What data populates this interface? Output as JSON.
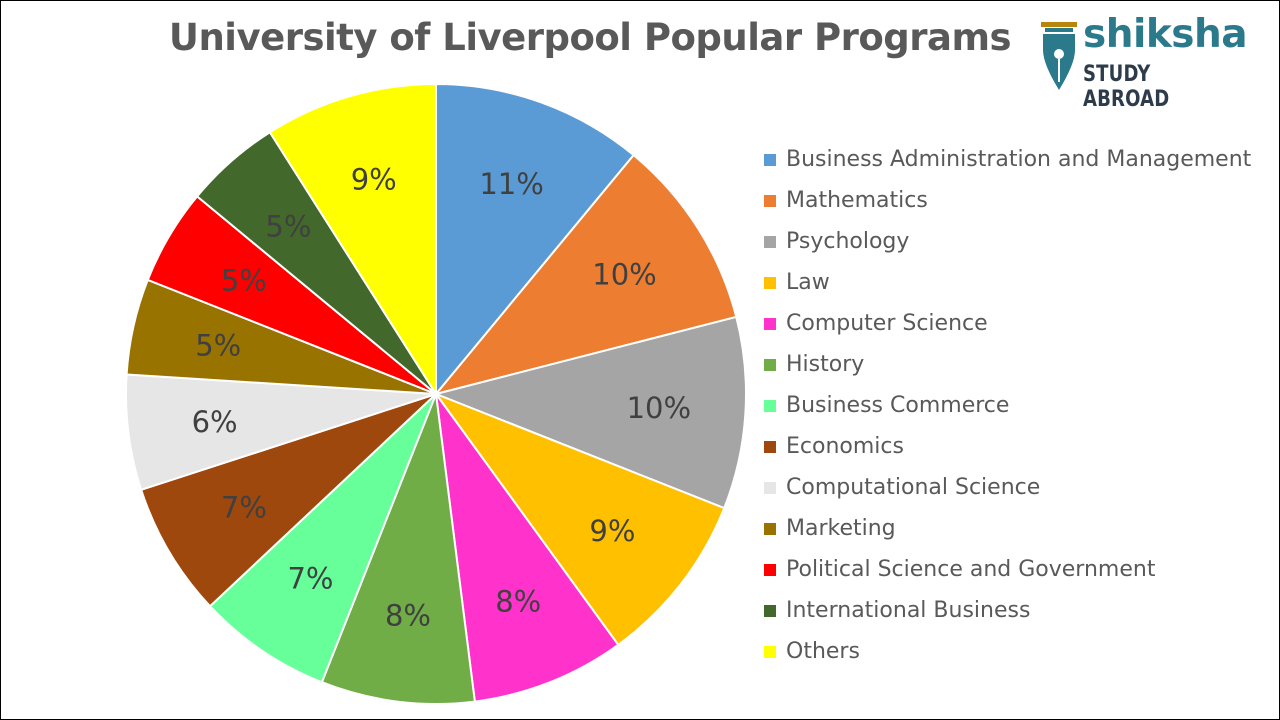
{
  "chart_data": {
    "type": "pie",
    "title": "University of Liverpool Popular Programs",
    "legend_position": "right",
    "slices": [
      {
        "name": "Business Administration and Management",
        "value": 11,
        "label": "11%",
        "color": "#5B9BD5",
        "label_color": "#404040"
      },
      {
        "name": "Mathematics",
        "value": 10,
        "label": "10%",
        "color": "#ED7D31",
        "label_color": "#404040"
      },
      {
        "name": "Psychology",
        "value": 10,
        "label": "10%",
        "color": "#A5A5A5",
        "label_color": "#404040"
      },
      {
        "name": "Law",
        "value": 9,
        "label": "9%",
        "color": "#FFC000",
        "label_color": "#404040"
      },
      {
        "name": "Computer Science",
        "value": 8,
        "label": "8%",
        "color": "#FF33CC",
        "label_color": "#404040"
      },
      {
        "name": "History",
        "value": 8,
        "label": "8%",
        "color": "#70AD47",
        "label_color": "#404040"
      },
      {
        "name": "Business Commerce",
        "value": 7,
        "label": "7%",
        "color": "#66FF99",
        "label_color": "#404040"
      },
      {
        "name": "Economics",
        "value": 7,
        "label": "7%",
        "color": "#9E480E",
        "label_color": "#404040"
      },
      {
        "name": "Computational Science",
        "value": 6,
        "label": "6%",
        "color": "#E7E6E6",
        "label_color": "#404040"
      },
      {
        "name": "Marketing",
        "value": 5,
        "label": "5%",
        "color": "#997300",
        "label_color": "#404040"
      },
      {
        "name": "Political Science and Government",
        "value": 5,
        "label": "5%",
        "color": "#FF0000",
        "label_color": "#404040"
      },
      {
        "name": "International Business",
        "value": 5,
        "label": "5%",
        "color": "#43682B",
        "label_color": "#404040"
      },
      {
        "name": "Others",
        "value": 9,
        "label": "9%",
        "color": "#FFFF00",
        "label_color": "#404040"
      }
    ]
  },
  "logo": {
    "word": "shiksha",
    "subtitle": "STUDY ABROAD",
    "icon": "pen-nib-icon",
    "color": "#2a7a8c"
  }
}
